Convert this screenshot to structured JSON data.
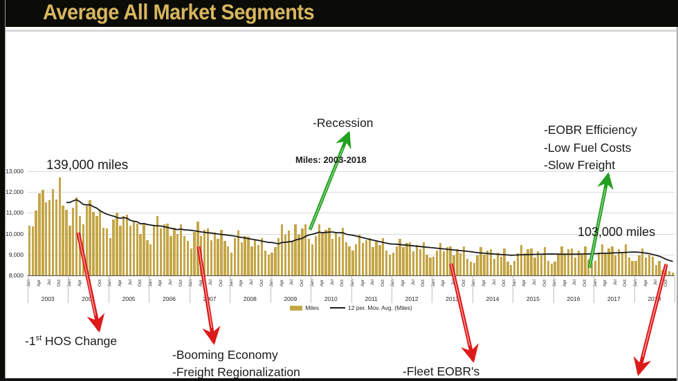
{
  "slide": {
    "title": "Average All Market Segments"
  },
  "chart_data": {
    "type": "bar",
    "title": "Miles: 2003-2018",
    "xlabel": "",
    "ylabel": "",
    "ylim": [
      8000,
      13000
    ],
    "y_tick_step": 1000,
    "y_ticks": [
      "8,000",
      "9,000",
      "10,000",
      "11,000",
      "12,000",
      "13,000"
    ],
    "years": [
      "2003",
      "2004",
      "2005",
      "2006",
      "2007",
      "2008",
      "2009",
      "2010",
      "2011",
      "2012",
      "2013",
      "2014",
      "2015",
      "2016",
      "2017",
      "2018"
    ],
    "month_ticks": [
      "Jan",
      "Apr",
      "Jul",
      "Oct"
    ],
    "grid": true,
    "legend_position": "bottom",
    "legend": [
      "Miles",
      "12 per. Mov. Avg. (Miles)"
    ],
    "series": [
      {
        "name": "Miles",
        "type": "bar",
        "color": "#C4A647",
        "values": [
          10400,
          10350,
          11100,
          11950,
          12100,
          11500,
          11600,
          12150,
          11650,
          12700,
          11350,
          11150,
          10400,
          11250,
          11750,
          10850,
          10450,
          11350,
          11600,
          11050,
          10850,
          11150,
          10300,
          10250,
          9800,
          10700,
          11000,
          10400,
          10850,
          10900,
          10400,
          10600,
          10500,
          10000,
          10450,
          9700,
          9500,
          10400,
          10850,
          10250,
          10450,
          10500,
          9900,
          10300,
          10000,
          10450,
          9900,
          9650,
          9300,
          10100,
          10600,
          9900,
          10200,
          10250,
          9700,
          10050,
          9750,
          10200,
          9650,
          9400,
          9100,
          9800,
          10150,
          9600,
          9900,
          9850,
          9400,
          9700,
          9450,
          9800,
          9200,
          9000,
          9100,
          9350,
          9800,
          10450,
          9950,
          10150,
          9650,
          10450,
          9950,
          10250,
          10450,
          9750,
          9500,
          9900,
          10450,
          10050,
          10200,
          10300,
          9750,
          10100,
          9850,
          10300,
          9600,
          9400,
          9200,
          9500,
          9950,
          9550,
          9700,
          9800,
          9350,
          9650,
          9450,
          9800,
          9200,
          9000,
          9100,
          9400,
          9750,
          9350,
          9550,
          9600,
          9150,
          9450,
          9250,
          9600,
          9000,
          8850,
          8900,
          9200,
          9550,
          9150,
          9350,
          9400,
          8950,
          9250,
          9050,
          9400,
          8800,
          8650,
          8600,
          8950,
          9350,
          9000,
          9200,
          9250,
          8800,
          9100,
          8900,
          9300,
          8650,
          8500,
          8700,
          9050,
          9450,
          9050,
          9250,
          9300,
          8850,
          9150,
          8950,
          9350,
          8700,
          8550,
          8650,
          9000,
          9400,
          9050,
          9250,
          9300,
          8850,
          9200,
          9000,
          9400,
          8750,
          8600,
          8700,
          9100,
          9500,
          9100,
          9300,
          9400,
          8950,
          9250,
          9100,
          9500,
          8850,
          8700,
          8700,
          8950,
          9300,
          8850,
          9000,
          8900,
          8500,
          8700,
          8250,
          8550,
          8200,
          8150
        ]
      },
      {
        "name": "12 per. Mov. Avg. (Miles)",
        "type": "line",
        "color": "#1A1A1A",
        "derived_from": "trailing 12-month moving average of Miles values"
      }
    ]
  },
  "annotations": {
    "miles_start": "139,000 miles",
    "miles_end": "103,000 miles",
    "recession": "-Recession",
    "hos": {
      "prefix": "-1",
      "sup": "st",
      "rest": " HOS Change"
    },
    "booming_line1": "-Booming Economy",
    "booming_line2": "-Freight Regionalization",
    "eobr_line1": "-EOBR Efficiency",
    "eobr_line2": "-Low Fuel Costs",
    "eobr_line3": "-Slow Freight",
    "fleet": "-Fleet EOBR's"
  },
  "colors": {
    "banner": "#0B0B08",
    "title_text": "#D8B65E",
    "bar": "#C4A647",
    "ma_line": "#1A1A1A",
    "arrow_red": "#DD1A1A",
    "arrow_green": "#22A01E",
    "gridline": "#D9D9D9"
  }
}
